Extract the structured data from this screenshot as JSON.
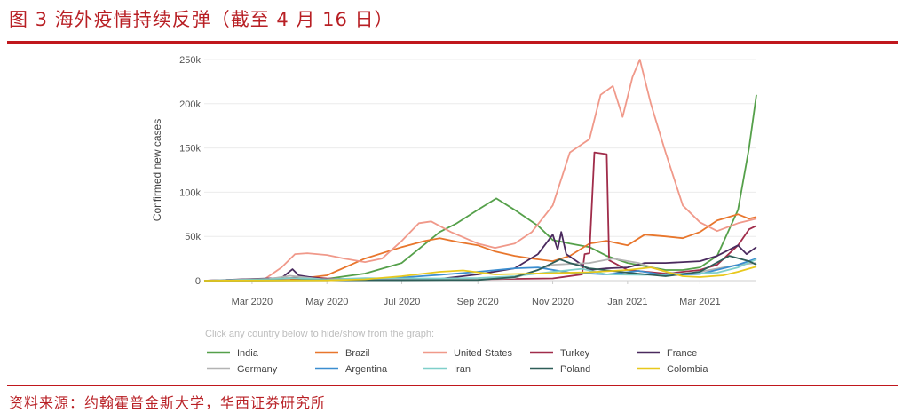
{
  "figure": {
    "title": "图 3   海外疫情持续反弹（截至 4 月 16 日）",
    "source": "资料来源：约翰霍普金斯大学，华西证券研究所"
  },
  "chart_data": {
    "type": "line",
    "ylabel": "Confirmed new cases",
    "hint": "Click any country below to hide/show from the graph:",
    "ylim": [
      0,
      250000
    ],
    "yticks": [
      0,
      50000,
      100000,
      150000,
      200000,
      250000
    ],
    "ytick_labels": [
      "0",
      "50k",
      "100k",
      "150k",
      "200k",
      "250k"
    ],
    "x_range": [
      "2020-01-22",
      "2021-04-16"
    ],
    "xticks": [
      "2020-03-01",
      "2020-05-01",
      "2020-07-01",
      "2020-09-01",
      "2020-11-01",
      "2021-01-01",
      "2021-03-01"
    ],
    "xtick_labels": [
      "Mar 2020",
      "May 2020",
      "Jul 2020",
      "Sep 2020",
      "Nov 2020",
      "Jan 2021",
      "Mar 2021"
    ],
    "grid": true,
    "legend_position": "bottom",
    "series": [
      {
        "name": "India",
        "color": "#55a04a",
        "points": [
          [
            "2020-01-22",
            0
          ],
          [
            "2020-04-01",
            500
          ],
          [
            "2020-05-01",
            2000
          ],
          [
            "2020-06-01",
            8000
          ],
          [
            "2020-07-01",
            20000
          ],
          [
            "2020-08-01",
            55000
          ],
          [
            "2020-08-15",
            65000
          ],
          [
            "2020-09-01",
            80000
          ],
          [
            "2020-09-16",
            93000
          ],
          [
            "2020-10-01",
            80000
          ],
          [
            "2020-10-20",
            62000
          ],
          [
            "2020-11-01",
            46000
          ],
          [
            "2020-11-15",
            42000
          ],
          [
            "2020-12-01",
            38000
          ],
          [
            "2020-12-15",
            28000
          ],
          [
            "2021-01-01",
            20000
          ],
          [
            "2021-02-01",
            12000
          ],
          [
            "2021-02-15",
            12000
          ],
          [
            "2021-03-01",
            15000
          ],
          [
            "2021-03-15",
            28000
          ],
          [
            "2021-04-01",
            80000
          ],
          [
            "2021-04-10",
            150000
          ],
          [
            "2021-04-16",
            210000
          ]
        ]
      },
      {
        "name": "Brazil",
        "color": "#e8762c",
        "points": [
          [
            "2020-01-22",
            0
          ],
          [
            "2020-04-01",
            1000
          ],
          [
            "2020-05-01",
            6000
          ],
          [
            "2020-06-01",
            25000
          ],
          [
            "2020-07-01",
            38000
          ],
          [
            "2020-07-20",
            45000
          ],
          [
            "2020-08-01",
            48000
          ],
          [
            "2020-08-15",
            44000
          ],
          [
            "2020-09-01",
            40000
          ],
          [
            "2020-09-15",
            33000
          ],
          [
            "2020-10-01",
            28000
          ],
          [
            "2020-10-15",
            25000
          ],
          [
            "2020-11-01",
            22000
          ],
          [
            "2020-11-15",
            28000
          ],
          [
            "2020-12-01",
            42000
          ],
          [
            "2020-12-15",
            45000
          ],
          [
            "2021-01-01",
            40000
          ],
          [
            "2021-01-15",
            52000
          ],
          [
            "2021-02-01",
            50000
          ],
          [
            "2021-02-15",
            48000
          ],
          [
            "2021-03-01",
            55000
          ],
          [
            "2021-03-15",
            68000
          ],
          [
            "2021-04-01",
            75000
          ],
          [
            "2021-04-10",
            70000
          ],
          [
            "2021-04-16",
            72000
          ]
        ]
      },
      {
        "name": "United States",
        "color": "#f0998a",
        "points": [
          [
            "2020-01-22",
            0
          ],
          [
            "2020-03-10",
            500
          ],
          [
            "2020-03-25",
            15000
          ],
          [
            "2020-04-05",
            30000
          ],
          [
            "2020-04-15",
            31000
          ],
          [
            "2020-05-01",
            29000
          ],
          [
            "2020-05-15",
            25000
          ],
          [
            "2020-06-01",
            21000
          ],
          [
            "2020-06-15",
            25000
          ],
          [
            "2020-07-01",
            45000
          ],
          [
            "2020-07-15",
            65000
          ],
          [
            "2020-07-25",
            67000
          ],
          [
            "2020-08-10",
            55000
          ],
          [
            "2020-09-01",
            42000
          ],
          [
            "2020-09-15",
            37000
          ],
          [
            "2020-10-01",
            42000
          ],
          [
            "2020-10-15",
            55000
          ],
          [
            "2020-11-01",
            85000
          ],
          [
            "2020-11-15",
            145000
          ],
          [
            "2020-12-01",
            160000
          ],
          [
            "2020-12-10",
            210000
          ],
          [
            "2020-12-20",
            220000
          ],
          [
            "2020-12-28",
            185000
          ],
          [
            "2021-01-05",
            230000
          ],
          [
            "2021-01-11",
            250000
          ],
          [
            "2021-01-20",
            200000
          ],
          [
            "2021-02-01",
            145000
          ],
          [
            "2021-02-15",
            85000
          ],
          [
            "2021-03-01",
            66000
          ],
          [
            "2021-03-15",
            56000
          ],
          [
            "2021-04-01",
            65000
          ],
          [
            "2021-04-16",
            70000
          ]
        ]
      },
      {
        "name": "Turkey",
        "color": "#a02c4a",
        "points": [
          [
            "2020-01-22",
            0
          ],
          [
            "2020-04-01",
            3000
          ],
          [
            "2020-04-12",
            4500
          ],
          [
            "2020-05-01",
            2500
          ],
          [
            "2020-06-01",
            1000
          ],
          [
            "2020-07-01",
            1000
          ],
          [
            "2020-09-01",
            1500
          ],
          [
            "2020-11-01",
            2500
          ],
          [
            "2020-11-25",
            7000
          ],
          [
            "2020-11-27",
            30000
          ],
          [
            "2020-12-01",
            31000
          ],
          [
            "2020-12-05",
            145000
          ],
          [
            "2020-12-15",
            143000
          ],
          [
            "2020-12-17",
            23000
          ],
          [
            "2021-01-01",
            12000
          ],
          [
            "2021-02-01",
            8000
          ],
          [
            "2021-03-01",
            12000
          ],
          [
            "2021-03-15",
            18000
          ],
          [
            "2021-04-01",
            40000
          ],
          [
            "2021-04-10",
            58000
          ],
          [
            "2021-04-16",
            62000
          ]
        ]
      },
      {
        "name": "France",
        "color": "#4a2a5e",
        "points": [
          [
            "2020-01-22",
            0
          ],
          [
            "2020-03-25",
            3000
          ],
          [
            "2020-04-03",
            13000
          ],
          [
            "2020-04-08",
            6000
          ],
          [
            "2020-05-01",
            1000
          ],
          [
            "2020-07-01",
            500
          ],
          [
            "2020-08-01",
            2000
          ],
          [
            "2020-09-01",
            7000
          ],
          [
            "2020-10-01",
            14000
          ],
          [
            "2020-10-20",
            30000
          ],
          [
            "2020-11-01",
            52000
          ],
          [
            "2020-11-05",
            35000
          ],
          [
            "2020-11-08",
            55000
          ],
          [
            "2020-11-12",
            30000
          ],
          [
            "2020-12-01",
            12000
          ],
          [
            "2020-12-15",
            14000
          ],
          [
            "2021-01-01",
            15000
          ],
          [
            "2021-01-15",
            20000
          ],
          [
            "2021-02-01",
            20000
          ],
          [
            "2021-03-01",
            22000
          ],
          [
            "2021-03-15",
            28000
          ],
          [
            "2021-04-01",
            40000
          ],
          [
            "2021-04-08",
            30000
          ],
          [
            "2021-04-16",
            38000
          ]
        ]
      },
      {
        "name": "Germany",
        "color": "#b3b3b3",
        "points": [
          [
            "2020-01-22",
            0
          ],
          [
            "2020-03-15",
            2000
          ],
          [
            "2020-04-01",
            5500
          ],
          [
            "2020-05-01",
            1000
          ],
          [
            "2020-07-01",
            400
          ],
          [
            "2020-09-01",
            1500
          ],
          [
            "2020-10-01",
            3000
          ],
          [
            "2020-11-01",
            18000
          ],
          [
            "2020-12-01",
            20000
          ],
          [
            "2020-12-20",
            25000
          ],
          [
            "2021-01-10",
            20000
          ],
          [
            "2021-02-01",
            10000
          ],
          [
            "2021-02-15",
            7000
          ],
          [
            "2021-03-01",
            10000
          ],
          [
            "2021-04-01",
            18000
          ],
          [
            "2021-04-16",
            20000
          ]
        ]
      },
      {
        "name": "Argentina",
        "color": "#3b8ed0",
        "points": [
          [
            "2020-01-22",
            0
          ],
          [
            "2020-05-01",
            300
          ],
          [
            "2020-06-01",
            1500
          ],
          [
            "2020-07-01",
            3500
          ],
          [
            "2020-08-01",
            6500
          ],
          [
            "2020-09-01",
            10000
          ],
          [
            "2020-10-01",
            14000
          ],
          [
            "2020-10-20",
            15000
          ],
          [
            "2020-11-15",
            9000
          ],
          [
            "2020-12-15",
            7000
          ],
          [
            "2021-01-10",
            11000
          ],
          [
            "2021-02-01",
            6000
          ],
          [
            "2021-03-01",
            7500
          ],
          [
            "2021-04-01",
            18000
          ],
          [
            "2021-04-16",
            25000
          ]
        ]
      },
      {
        "name": "Iran",
        "color": "#7fcfca",
        "points": [
          [
            "2020-01-22",
            0
          ],
          [
            "2020-03-15",
            1500
          ],
          [
            "2020-04-01",
            3000
          ],
          [
            "2020-05-01",
            1500
          ],
          [
            "2020-06-01",
            2800
          ],
          [
            "2020-07-01",
            2500
          ],
          [
            "2020-08-01",
            2500
          ],
          [
            "2020-09-01",
            3000
          ],
          [
            "2020-10-01",
            5000
          ],
          [
            "2020-11-01",
            10000
          ],
          [
            "2020-11-25",
            13500
          ],
          [
            "2020-12-15",
            7000
          ],
          [
            "2021-01-15",
            6500
          ],
          [
            "2021-02-15",
            8000
          ],
          [
            "2021-03-15",
            9000
          ],
          [
            "2021-04-01",
            15000
          ],
          [
            "2021-04-16",
            24000
          ]
        ]
      },
      {
        "name": "Poland",
        "color": "#2e5e58",
        "points": [
          [
            "2020-01-22",
            0
          ],
          [
            "2020-04-01",
            400
          ],
          [
            "2020-07-01",
            400
          ],
          [
            "2020-09-01",
            700
          ],
          [
            "2020-10-01",
            4000
          ],
          [
            "2020-10-20",
            12000
          ],
          [
            "2020-11-07",
            24000
          ],
          [
            "2020-11-15",
            20000
          ],
          [
            "2020-12-01",
            14000
          ],
          [
            "2021-01-01",
            9000
          ],
          [
            "2021-02-01",
            5000
          ],
          [
            "2021-03-01",
            10000
          ],
          [
            "2021-03-25",
            28000
          ],
          [
            "2021-04-10",
            22000
          ],
          [
            "2021-04-16",
            18000
          ]
        ]
      },
      {
        "name": "Colombia",
        "color": "#e8c81c",
        "points": [
          [
            "2020-01-22",
            0
          ],
          [
            "2020-05-01",
            300
          ],
          [
            "2020-06-01",
            1500
          ],
          [
            "2020-07-01",
            5000
          ],
          [
            "2020-08-01",
            10000
          ],
          [
            "2020-08-20",
            11500
          ],
          [
            "2020-09-15",
            7000
          ],
          [
            "2020-10-01",
            7500
          ],
          [
            "2020-11-01",
            8500
          ],
          [
            "2020-12-01",
            9500
          ],
          [
            "2021-01-01",
            12000
          ],
          [
            "2021-01-20",
            15000
          ],
          [
            "2021-02-15",
            5000
          ],
          [
            "2021-03-01",
            4000
          ],
          [
            "2021-03-20",
            6000
          ],
          [
            "2021-04-01",
            10000
          ],
          [
            "2021-04-16",
            16000
          ]
        ]
      }
    ]
  }
}
